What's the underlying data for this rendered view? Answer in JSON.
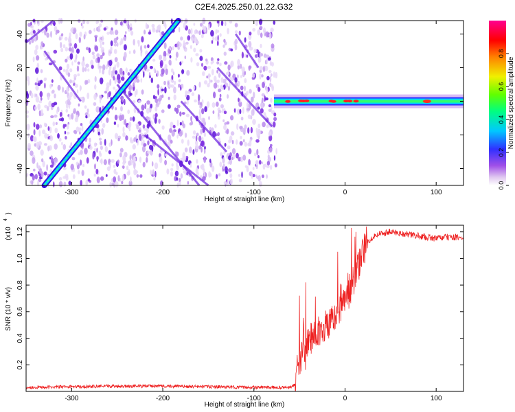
{
  "figure": {
    "title": "C2E4.2025.250.01.22.G32"
  },
  "chart_data": [
    {
      "type": "heatmap",
      "xlabel": "Height of straight line (km)",
      "ylabel": "Frequency (Hz)",
      "xlim": [
        -350,
        130
      ],
      "ylim": [
        -50,
        48
      ],
      "xticks": [
        -300,
        -200,
        -100,
        0,
        100
      ],
      "yticks": [
        -40,
        -20,
        0,
        20,
        40
      ],
      "colorbar": {
        "label": "Normalized spectral amplitude",
        "range": [
          0,
          1
        ],
        "ticks": [
          "0.0",
          "0.2",
          "0.4",
          "0.6",
          "0.8"
        ],
        "tick_values": [
          0.0,
          0.2,
          0.4,
          0.6,
          0.8
        ],
        "colormap": "rainbow (white-purple-blue-cyan-green-yellow-red-magenta)"
      },
      "features": [
        {
          "name": "strong drifting line",
          "from": [
            -330,
            -50
          ],
          "to": [
            -183,
            48
          ],
          "amplitude": 0.35
        },
        {
          "name": "carrier line",
          "from": [
            -78,
            0
          ],
          "to": [
            130,
            0
          ],
          "amplitude": 0.5
        }
      ],
      "noise_region_x": [
        -350,
        -75
      ]
    },
    {
      "type": "line",
      "xlabel": "Height of straight line (km)",
      "ylabel": "SNR (10 * v/v)",
      "scale_label": "(x10",
      "scale_exp": "4",
      "y_multiplier": 10000,
      "xlim": [
        -350,
        130
      ],
      "ylim": [
        0,
        1.25
      ],
      "xticks": [
        -300,
        -200,
        -100,
        0,
        100
      ],
      "yticks": [
        "0.2",
        "0.4",
        "0.6",
        "0.8",
        "1.0",
        "1.2"
      ],
      "ytick_values": [
        0.2,
        0.4,
        0.6,
        0.8,
        1.0,
        1.2
      ],
      "color": "#ee2222",
      "series": [
        {
          "x": [
            -350,
            -300,
            -250,
            -200,
            -150,
            -100,
            -75,
            -60,
            -55,
            -53,
            -50,
            -48,
            -46,
            -44,
            -42,
            -40,
            -35,
            -30,
            -25,
            -20,
            -15,
            -10,
            -5,
            0,
            5,
            10,
            15,
            20,
            25,
            30,
            35,
            40,
            50,
            60,
            70,
            80,
            90,
            100,
            110,
            120,
            130
          ],
          "values": [
            0.03,
            0.035,
            0.04,
            0.04,
            0.035,
            0.03,
            0.03,
            0.03,
            0.05,
            0.15,
            0.2,
            0.25,
            0.45,
            0.25,
            0.35,
            0.38,
            0.42,
            0.45,
            0.48,
            0.5,
            0.52,
            0.55,
            0.6,
            0.7,
            0.75,
            0.85,
            0.95,
            1.05,
            1.12,
            1.16,
            1.18,
            1.19,
            1.2,
            1.19,
            1.18,
            1.17,
            1.16,
            1.15,
            1.16,
            1.16,
            1.15
          ]
        }
      ],
      "spikes": [
        {
          "x": -50,
          "y": 0.72
        },
        {
          "x": -43,
          "y": 0.82
        },
        {
          "x": -8,
          "y": 1.05
        },
        {
          "x": 7,
          "y": 1.23
        },
        {
          "x": 12,
          "y": 1.2
        }
      ]
    }
  ]
}
